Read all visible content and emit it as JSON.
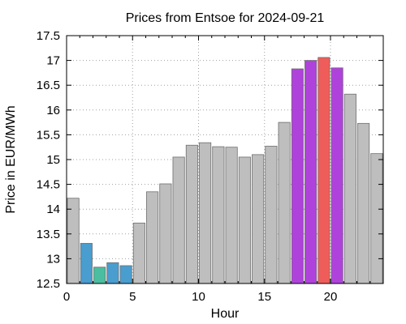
{
  "chart_data": {
    "type": "bar",
    "title": "Prices from Entsoe for 2024-09-21",
    "xlabel": "Hour",
    "ylabel": "Price in EUR/MWh",
    "xlim": [
      0,
      24
    ],
    "ylim": [
      12.5,
      17.5
    ],
    "grid": true,
    "legend": "none",
    "x_ticks": [
      0,
      5,
      10,
      15,
      20
    ],
    "y_ticks": [
      12.5,
      13,
      13.5,
      14,
      14.5,
      15,
      15.5,
      16,
      16.5,
      17,
      17.5
    ],
    "x_tick_labels": [
      "0",
      "5",
      "10",
      "15",
      "20"
    ],
    "y_tick_labels": [
      "12.5",
      "13",
      "13.5",
      "14",
      "14.5",
      "15",
      "15.5",
      "16",
      "16.5",
      "17",
      "17.5"
    ],
    "x": [
      0,
      1,
      2,
      3,
      4,
      5,
      6,
      7,
      8,
      9,
      10,
      11,
      12,
      13,
      14,
      15,
      16,
      17,
      18,
      19,
      20,
      21,
      22,
      23
    ],
    "values": [
      14.22,
      13.31,
      12.83,
      12.92,
      12.86,
      13.72,
      14.35,
      14.51,
      15.05,
      15.29,
      15.34,
      15.26,
      15.25,
      15.05,
      15.1,
      15.27,
      15.75,
      16.83,
      17.0,
      17.06,
      16.85,
      16.32,
      15.73,
      15.12
    ],
    "colors": [
      "#bebebe",
      "#4a9dcf",
      "#4bbda0",
      "#4a9dcf",
      "#4a9dcf",
      "#bebebe",
      "#bebebe",
      "#bebebe",
      "#bebebe",
      "#bebebe",
      "#bebebe",
      "#bebebe",
      "#bebebe",
      "#bebebe",
      "#bebebe",
      "#bebebe",
      "#bebebe",
      "#b042dc",
      "#b042dc",
      "#ef5d5a",
      "#b042dc",
      "#bebebe",
      "#bebebe",
      "#bebebe"
    ]
  }
}
